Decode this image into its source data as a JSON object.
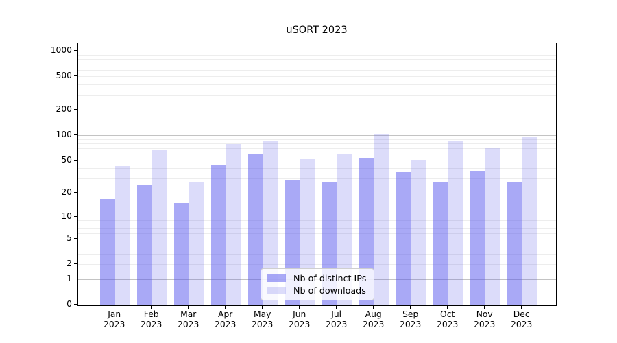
{
  "chart_data": {
    "type": "bar",
    "title": "uSORT 2023",
    "categories": [
      "Jan",
      "Feb",
      "Mar",
      "Apr",
      "May",
      "Jun",
      "Jul",
      "Aug",
      "Sep",
      "Oct",
      "Nov",
      "Dec"
    ],
    "year": "2023",
    "series": [
      {
        "key": "ips",
        "name": "Nb of distinct IPs",
        "color_hex": "#a9a9f6",
        "color_rgba": "rgba(83,83,237,0.5)",
        "values": [
          17,
          25,
          15,
          44,
          60,
          29,
          27,
          54,
          36,
          27,
          37,
          27
        ]
      },
      {
        "key": "downloads",
        "name": "Nb of downloads",
        "color_hex": "#dcdcfa",
        "color_rgba": "rgba(80,80,230,0.2)",
        "values": [
          43,
          68,
          27,
          79,
          86,
          52,
          60,
          104,
          51,
          85,
          70,
          97
        ]
      }
    ],
    "scale": "log1p",
    "ylim": [
      0,
      1000
    ],
    "yticks": [
      1000,
      500,
      200,
      100,
      50,
      20,
      10,
      5,
      2,
      1,
      0
    ],
    "grid": {
      "major": [
        1,
        10,
        100,
        1000
      ],
      "minor_bases": [
        1,
        10,
        100
      ],
      "minor_multipliers": [
        2,
        3,
        4,
        5,
        6,
        7,
        8,
        9
      ]
    },
    "legend_position": "lower center",
    "axis_color": "#000000",
    "grid_major_color": "#c3c3c3",
    "grid_minor_color": "#ededed"
  }
}
